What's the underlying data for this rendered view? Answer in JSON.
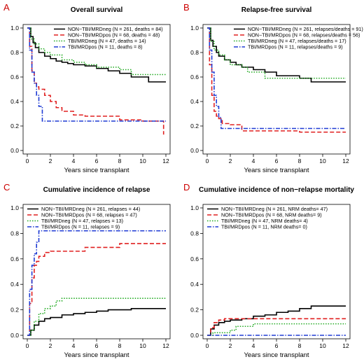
{
  "chart_data": [
    {
      "type": "line",
      "panel_label": "A",
      "title": "Overall survival",
      "xlabel": "Years since transplant",
      "ylabel": "",
      "xlim": [
        0,
        12
      ],
      "ylim": [
        0,
        1
      ],
      "x_ticks": [
        0,
        2,
        4,
        6,
        8,
        10,
        12
      ],
      "y_ticks": [
        0.0,
        0.2,
        0.4,
        0.6,
        0.8,
        1.0
      ],
      "y_tick_labels": [
        "0.0",
        "0.2",
        "0.4",
        "0.6",
        "0.8",
        "1.0"
      ],
      "grid": false,
      "legend_position": "top-right",
      "series": [
        {
          "name": "NON−TBI/MRDneg (N = 261, deaths = 84)",
          "color": "#000000",
          "dash": "solid",
          "x": [
            0,
            0.3,
            0.5,
            0.7,
            1.0,
            1.5,
            2.0,
            2.5,
            3.0,
            3.5,
            4.0,
            5.0,
            6.0,
            7.0,
            8.0,
            9.0,
            10.0,
            10.5,
            12.0
          ],
          "y": [
            1.0,
            0.93,
            0.88,
            0.84,
            0.8,
            0.77,
            0.75,
            0.73,
            0.72,
            0.71,
            0.7,
            0.69,
            0.67,
            0.65,
            0.63,
            0.6,
            0.6,
            0.56,
            0.56
          ]
        },
        {
          "name": "NON−TBI/MRDpos (N = 68, deaths = 48)",
          "color": "#e02020",
          "dash": "dashed",
          "x": [
            0,
            0.2,
            0.4,
            0.6,
            0.8,
            1.0,
            1.5,
            2.0,
            2.5,
            3.0,
            4.0,
            5.0,
            6.0,
            8.0,
            10.0,
            11.5,
            11.8
          ],
          "y": [
            1.0,
            0.85,
            0.65,
            0.55,
            0.52,
            0.5,
            0.45,
            0.4,
            0.35,
            0.32,
            0.29,
            0.28,
            0.28,
            0.25,
            0.24,
            0.24,
            0.13
          ]
        },
        {
          "name": "TBI/MRDneg (N = 47, deaths = 14)",
          "color": "#22aa22",
          "dash": "dotted",
          "x": [
            0,
            0.3,
            0.6,
            1.0,
            1.5,
            2.0,
            3.0,
            4.0,
            5.0,
            6.0,
            7.0,
            8.0,
            9.0,
            10.0,
            12.0
          ],
          "y": [
            1.0,
            0.91,
            0.87,
            0.83,
            0.8,
            0.78,
            0.74,
            0.72,
            0.7,
            0.68,
            0.68,
            0.66,
            0.62,
            0.62,
            0.62
          ]
        },
        {
          "name": "TBI/MRDpos (N = 11, deaths = 8)",
          "color": "#1f3bd4",
          "dash": "dashdot",
          "x": [
            0,
            0.2,
            0.4,
            0.6,
            0.8,
            1.0,
            1.3,
            12.0
          ],
          "y": [
            1.0,
            0.82,
            0.64,
            0.55,
            0.45,
            0.36,
            0.24,
            0.24
          ]
        }
      ]
    },
    {
      "type": "line",
      "panel_label": "B",
      "title": "Relapse-free survival",
      "xlabel": "Years since transplant",
      "ylabel": "",
      "xlim": [
        0,
        12
      ],
      "ylim": [
        0,
        1
      ],
      "x_ticks": [
        0,
        2,
        4,
        6,
        8,
        10,
        12
      ],
      "y_ticks": [
        0.0,
        0.2,
        0.4,
        0.6,
        0.8,
        1.0
      ],
      "y_tick_labels": [
        "0.0",
        "0.2",
        "0.4",
        "0.6",
        "0.8",
        "1.0"
      ],
      "grid": false,
      "legend_position": "top-right",
      "series": [
        {
          "name": "NON−TBI/MRDneg (N = 261, relapses/deaths = 91)",
          "color": "#000000",
          "dash": "solid",
          "x": [
            0,
            0.3,
            0.5,
            0.8,
            1.0,
            1.5,
            2.0,
            2.5,
            3.0,
            4.0,
            5.0,
            6.0,
            7.0,
            8.0,
            9.0,
            10.0,
            12.0
          ],
          "y": [
            1.0,
            0.9,
            0.85,
            0.8,
            0.77,
            0.74,
            0.72,
            0.7,
            0.68,
            0.66,
            0.64,
            0.61,
            0.61,
            0.59,
            0.56,
            0.56,
            0.56
          ]
        },
        {
          "name": "NON−TBI/MRDpos (N = 68, relapses/deaths = 56)",
          "color": "#e02020",
          "dash": "dashed",
          "x": [
            0,
            0.2,
            0.4,
            0.6,
            0.8,
            1.0,
            1.3,
            2.0,
            3.0,
            8.0,
            12.0
          ],
          "y": [
            1.0,
            0.7,
            0.45,
            0.32,
            0.28,
            0.26,
            0.22,
            0.21,
            0.16,
            0.15,
            0.15
          ]
        },
        {
          "name": "TBI/MRDneg (N = 47, relapses/deaths = 17)",
          "color": "#22aa22",
          "dash": "dotted",
          "x": [
            0,
            0.3,
            0.6,
            1.0,
            1.5,
            2.0,
            3.0,
            3.5,
            4.0,
            5.0,
            12.0
          ],
          "y": [
            1.0,
            0.89,
            0.82,
            0.78,
            0.74,
            0.7,
            0.68,
            0.64,
            0.64,
            0.59,
            0.59
          ]
        },
        {
          "name": "TBI/MRDpos (N = 11, relapses/deaths = 9)",
          "color": "#1f3bd4",
          "dash": "dashdot",
          "x": [
            0,
            0.2,
            0.4,
            0.6,
            0.8,
            1.0,
            1.2,
            12.0
          ],
          "y": [
            1.0,
            0.82,
            0.64,
            0.45,
            0.36,
            0.27,
            0.18,
            0.18
          ]
        }
      ]
    },
    {
      "type": "line",
      "panel_label": "C",
      "title": "Cumulative incidence of relapse",
      "xlabel": "Years since transplant",
      "ylabel": "",
      "xlim": [
        0,
        12
      ],
      "ylim": [
        0,
        1
      ],
      "x_ticks": [
        0,
        2,
        4,
        6,
        8,
        10,
        12
      ],
      "y_ticks": [
        0.0,
        0.2,
        0.4,
        0.6,
        0.8,
        1.0
      ],
      "y_tick_labels": [
        "0.0",
        "0.2",
        "0.4",
        "0.6",
        "0.8",
        "1.0"
      ],
      "grid": false,
      "legend_position": "top-left",
      "series": [
        {
          "name": "NON−TBI/MRDneg (N = 261, relapses = 44)",
          "color": "#000000",
          "dash": "solid",
          "x": [
            0,
            0.3,
            0.6,
            1.0,
            1.5,
            2.0,
            3.0,
            4.0,
            5.0,
            6.0,
            7.0,
            8.0,
            9.0,
            10.0,
            12.0
          ],
          "y": [
            0,
            0.04,
            0.08,
            0.11,
            0.13,
            0.14,
            0.16,
            0.17,
            0.18,
            0.19,
            0.2,
            0.2,
            0.21,
            0.21,
            0.21
          ]
        },
        {
          "name": "NON−TBI/MRDpos (N = 68, relapses = 47)",
          "color": "#e02020",
          "dash": "dashed",
          "x": [
            0,
            0.2,
            0.4,
            0.6,
            0.8,
            1.0,
            1.5,
            2.0,
            3.0,
            5.0,
            8.0,
            12.0
          ],
          "y": [
            0,
            0.25,
            0.45,
            0.55,
            0.58,
            0.62,
            0.65,
            0.66,
            0.66,
            0.69,
            0.72,
            0.72
          ]
        },
        {
          "name": "TBI/MRDneg (N = 47, relapses = 13)",
          "color": "#22aa22",
          "dash": "dotted",
          "x": [
            0,
            0.3,
            0.6,
            1.0,
            1.5,
            2.0,
            2.5,
            3.0,
            12.0
          ],
          "y": [
            0,
            0.04,
            0.11,
            0.17,
            0.21,
            0.23,
            0.27,
            0.29,
            0.29
          ]
        },
        {
          "name": "TBI/MRDpos (N = 11, relapses = 9)",
          "color": "#1f3bd4",
          "dash": "dashdot",
          "x": [
            0,
            0.2,
            0.4,
            0.6,
            0.8,
            1.0,
            12.0
          ],
          "y": [
            0,
            0.36,
            0.55,
            0.64,
            0.73,
            0.82,
            0.82
          ]
        }
      ]
    },
    {
      "type": "line",
      "panel_label": "D",
      "title": "Cumulative incidence of non−relapse mortality",
      "xlabel": "Years since transplant",
      "ylabel": "",
      "xlim": [
        0,
        12
      ],
      "ylim": [
        0,
        1
      ],
      "x_ticks": [
        0,
        2,
        4,
        6,
        8,
        10,
        12
      ],
      "y_ticks": [
        0.0,
        0.2,
        0.4,
        0.6,
        0.8,
        1.0
      ],
      "y_tick_labels": [
        "0.0",
        "0.2",
        "0.4",
        "0.6",
        "0.8",
        "1.0"
      ],
      "grid": false,
      "legend_position": "top-left",
      "series": [
        {
          "name": "NON−TBI/MRDneg (N = 261, NRM deaths= 47)",
          "color": "#000000",
          "dash": "solid",
          "x": [
            0,
            0.3,
            0.6,
            1.0,
            1.5,
            2.0,
            3.0,
            4.0,
            5.0,
            6.0,
            7.0,
            8.0,
            9.0,
            10.0,
            12.0
          ],
          "y": [
            0,
            0.05,
            0.08,
            0.1,
            0.11,
            0.12,
            0.13,
            0.15,
            0.16,
            0.18,
            0.19,
            0.21,
            0.23,
            0.23,
            0.23
          ]
        },
        {
          "name": "NON−TBI/MRDpos (N = 68, NRM deaths= 9)",
          "color": "#e02020",
          "dash": "dashed",
          "x": [
            0,
            0.3,
            0.6,
            1.0,
            1.5,
            2.0,
            12.0
          ],
          "y": [
            0,
            0.06,
            0.1,
            0.12,
            0.13,
            0.13,
            0.13
          ]
        },
        {
          "name": "TBI/MRDneg (N = 47, NRM deaths= 4)",
          "color": "#22aa22",
          "dash": "dotted",
          "x": [
            0,
            0.5,
            1.0,
            2.0,
            2.5,
            3.0,
            4.0,
            12.0
          ],
          "y": [
            0,
            0.02,
            0.02,
            0.04,
            0.07,
            0.07,
            0.09,
            0.09
          ]
        },
        {
          "name": "TBI/MRDpos (N = 11, NRM deaths= 0)",
          "color": "#1f3bd4",
          "dash": "dashdot",
          "x": [
            0,
            12.0
          ],
          "y": [
            0,
            0
          ]
        }
      ]
    }
  ]
}
